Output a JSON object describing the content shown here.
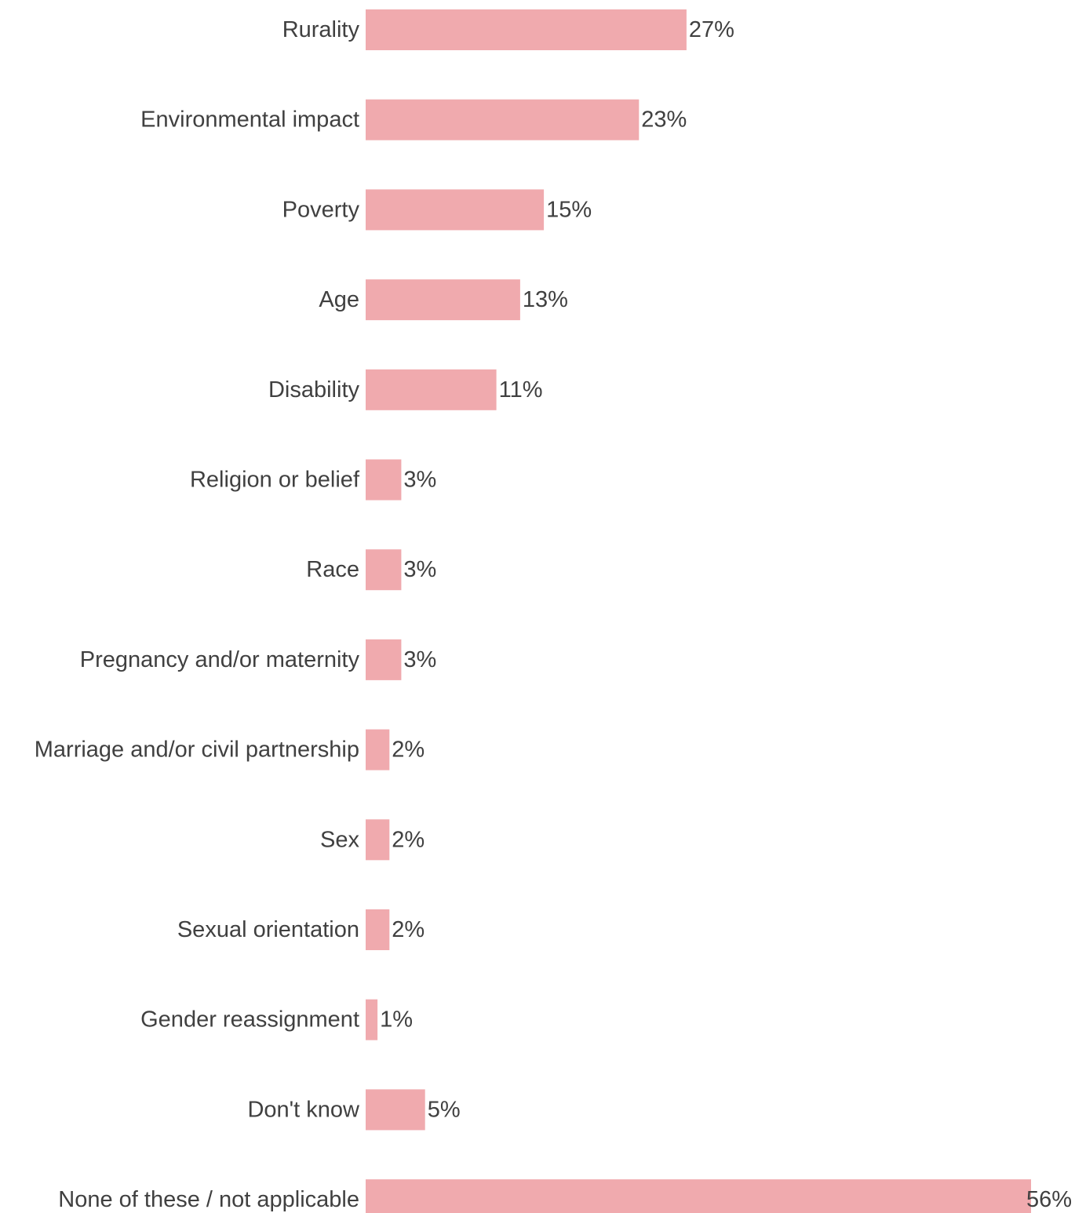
{
  "chart_data": {
    "type": "bar",
    "orientation": "horizontal",
    "title": "",
    "xlabel": "",
    "ylabel": "",
    "categories": [
      "Rurality",
      "Environmental impact",
      "Poverty",
      "Age",
      "Disability",
      "Religion or belief",
      "Race",
      "Pregnancy and/or maternity",
      "Marriage and/or civil partnership",
      "Sex",
      "Sexual orientation",
      "Gender reassignment",
      "Don't know",
      "None of these / not applicable"
    ],
    "values": [
      27,
      23,
      15,
      13,
      11,
      3,
      3,
      3,
      2,
      2,
      2,
      1,
      5,
      56
    ],
    "value_labels": [
      "27%",
      "23%",
      "15%",
      "13%",
      "11%",
      "3%",
      "3%",
      "3%",
      "2%",
      "2%",
      "2%",
      "1%",
      "5%",
      "56%"
    ],
    "unit": "%",
    "xlim": [
      0,
      56
    ],
    "grid": false,
    "legend": "none",
    "colors": {
      "bar": "#f0aaae",
      "text": "#404040"
    }
  }
}
